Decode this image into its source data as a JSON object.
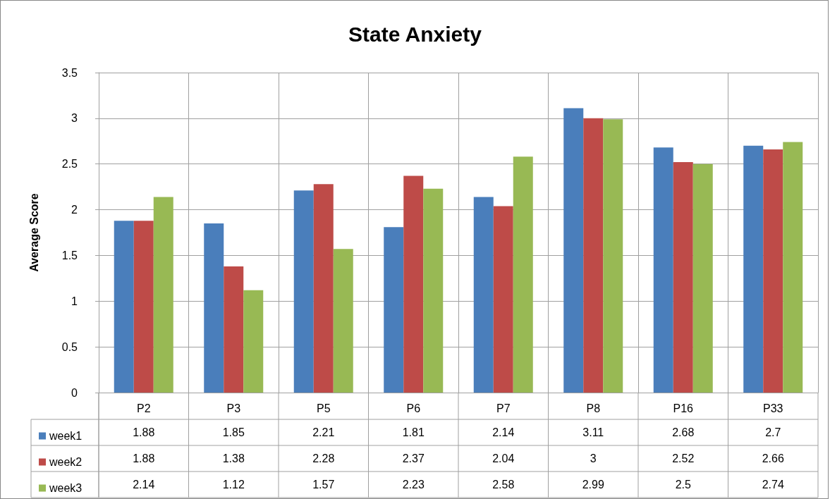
{
  "chart_data": {
    "type": "bar",
    "title": "State Anxiety",
    "ylabel": "Average Score",
    "categories": [
      "P2",
      "P3",
      "P5",
      "P6",
      "P7",
      "P8",
      "P16",
      "P33"
    ],
    "series": [
      {
        "name": "week1",
        "color": "#4a7ebb",
        "values": [
          1.88,
          1.85,
          2.21,
          1.81,
          2.14,
          3.11,
          2.68,
          2.7
        ]
      },
      {
        "name": "week2",
        "color": "#be4b48",
        "values": [
          1.88,
          1.38,
          2.28,
          2.37,
          2.04,
          3,
          2.52,
          2.66
        ]
      },
      {
        "name": "week3",
        "color": "#98b954",
        "values": [
          2.14,
          1.12,
          1.57,
          2.23,
          2.58,
          2.99,
          2.5,
          2.74
        ]
      }
    ],
    "ylim": [
      0,
      3.5
    ],
    "yticks": [
      0,
      0.5,
      1,
      1.5,
      2,
      2.5,
      3,
      3.5
    ],
    "grid": true,
    "legend": "bottom left",
    "data_labels": true
  }
}
